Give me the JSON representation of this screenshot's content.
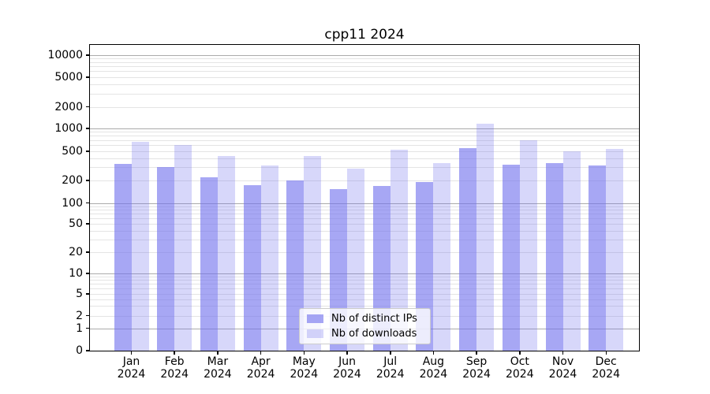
{
  "title": "cpp11 2024",
  "chart_data": {
    "type": "bar",
    "title": "cpp11 2024",
    "yscale": "symlog",
    "ylim": [
      0,
      13400
    ],
    "y_ticks": [
      0,
      1,
      2,
      5,
      10,
      20,
      50,
      100,
      200,
      500,
      1000,
      2000,
      5000,
      10000
    ],
    "grid": true,
    "legend_position": "lower center",
    "months": [
      "Jan",
      "Feb",
      "Mar",
      "Apr",
      "May",
      "Jun",
      "Jul",
      "Aug",
      "Sep",
      "Oct",
      "Nov",
      "Dec"
    ],
    "year": "2024",
    "series": [
      {
        "name": "Nb of distinct IPs",
        "color": "rgba(113,113,238,0.62)",
        "values": [
          335,
          305,
          222,
          173,
          200,
          152,
          167,
          189,
          550,
          323,
          342,
          317
        ]
      },
      {
        "name": "Nb of downloads",
        "color": "rgba(113,113,238,0.28)",
        "values": [
          665,
          610,
          425,
          320,
          430,
          292,
          520,
          345,
          1150,
          690,
          493,
          540
        ]
      }
    ],
    "colors": {
      "bar_distinct_ips": "rgba(113,113,238,0.62)",
      "bar_downloads": "rgba(113,113,238,0.28)",
      "major_gridline": "#ababab",
      "minor_gridline": "#e4e4e4",
      "axis": "#000000",
      "background": "#ffffff"
    }
  }
}
